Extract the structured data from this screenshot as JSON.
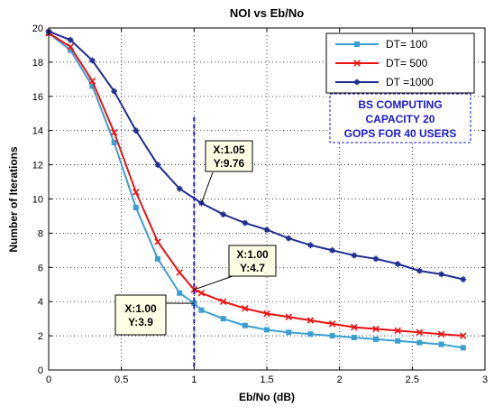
{
  "chart_data": {
    "type": "line",
    "title": "NOI vs Eb/No",
    "xlabel": "Eb/No (dB)",
    "ylabel": "Number of Iterations",
    "xlim": [
      0,
      3
    ],
    "ylim": [
      0,
      20
    ],
    "xticks": [
      "0",
      "0.5",
      "1",
      "1.5",
      "2",
      "2.5",
      "3"
    ],
    "yticks": [
      "0",
      "2",
      "4",
      "6",
      "8",
      "10",
      "12",
      "14",
      "16",
      "18",
      "20"
    ],
    "grid": true,
    "legend_position": "top-right",
    "series": [
      {
        "name": "DT= 100",
        "color": "#3a9fd0",
        "marker": "square",
        "x": [
          0,
          0.15,
          0.3,
          0.45,
          0.6,
          0.75,
          0.9,
          1.0,
          1.05,
          1.2,
          1.35,
          1.5,
          1.65,
          1.8,
          1.95,
          2.1,
          2.25,
          2.4,
          2.55,
          2.7,
          2.85
        ],
        "y": [
          19.7,
          18.7,
          16.6,
          13.3,
          9.5,
          6.5,
          4.5,
          3.9,
          3.5,
          3.0,
          2.6,
          2.35,
          2.2,
          2.1,
          2.0,
          1.9,
          1.8,
          1.7,
          1.6,
          1.5,
          1.3
        ]
      },
      {
        "name": "DT= 500",
        "color": "#ee1111",
        "marker": "x",
        "x": [
          0,
          0.15,
          0.3,
          0.45,
          0.6,
          0.75,
          0.9,
          1.0,
          1.05,
          1.2,
          1.35,
          1.5,
          1.65,
          1.8,
          1.95,
          2.1,
          2.25,
          2.4,
          2.55,
          2.7,
          2.85
        ],
        "y": [
          19.7,
          18.9,
          16.9,
          13.9,
          10.4,
          7.5,
          5.7,
          4.7,
          4.5,
          4.0,
          3.6,
          3.3,
          3.1,
          2.9,
          2.7,
          2.5,
          2.4,
          2.3,
          2.2,
          2.1,
          2.0
        ]
      },
      {
        "name": "DT =1000",
        "color": "#1f2e8f",
        "marker": "star",
        "x": [
          0,
          0.15,
          0.3,
          0.45,
          0.6,
          0.75,
          0.9,
          1.05,
          1.2,
          1.35,
          1.5,
          1.65,
          1.8,
          1.95,
          2.1,
          2.25,
          2.4,
          2.55,
          2.7,
          2.85
        ],
        "y": [
          19.8,
          19.3,
          18.1,
          16.3,
          14.0,
          12.0,
          10.6,
          9.76,
          9.1,
          8.6,
          8.2,
          7.7,
          7.3,
          7.0,
          6.7,
          6.5,
          6.2,
          5.8,
          5.6,
          5.3
        ]
      }
    ],
    "vline": {
      "x": 1.0,
      "color": "#1a1acc"
    },
    "datatips": [
      {
        "x_label": "X:1.05",
        "y_label": "Y:9.76",
        "x": 1.05,
        "y": 9.76
      },
      {
        "x_label": "X:1.00",
        "y_label": "Y:4.7",
        "x": 1.0,
        "y": 4.7
      },
      {
        "x_label": "X:1.00",
        "y_label": "Y:3.9",
        "x": 1.0,
        "y": 3.9
      }
    ],
    "annotation": {
      "lines": [
        "BS COMPUTING",
        "CAPACITY 20",
        "GOPS FOR 40 USERS"
      ],
      "color": "#1a1acc"
    }
  }
}
